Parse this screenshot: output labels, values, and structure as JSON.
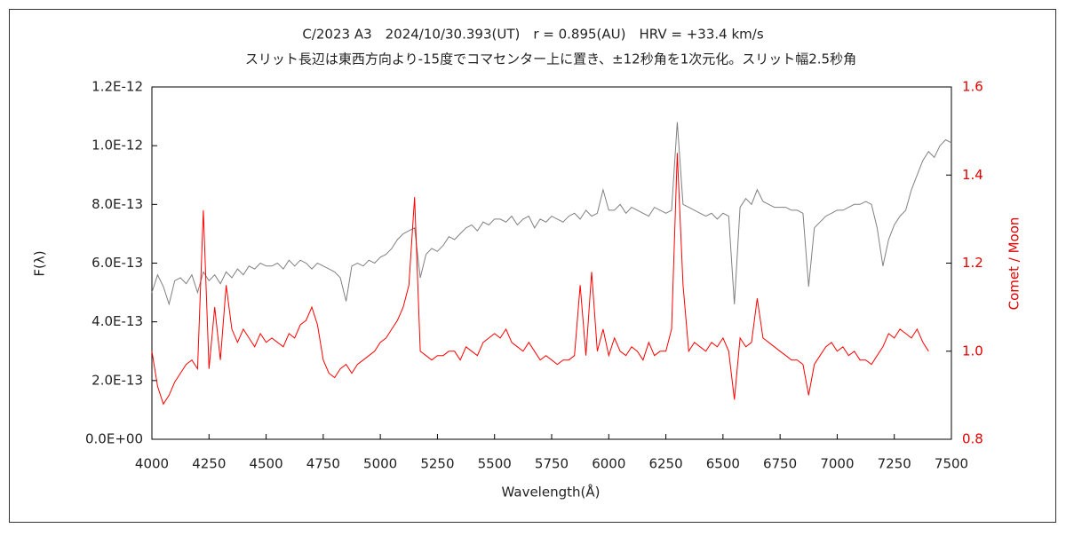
{
  "chart_data": {
    "type": "line",
    "title": "C/2023 A3　2024/10/30.393(UT)　r = 0.895(AU)　HRV = +33.4 km/s",
    "subtitle": "スリット長辺は東西方向より-15度でコマセンター上に置き、±12秒角を1次元化。スリット幅2.5秒角",
    "x_label": "Wavelength(Å)",
    "y_label": "F(λ)",
    "y2_label": "Comet / Moon",
    "xlim": [
      4000,
      7500
    ],
    "xticks": [
      4000,
      4250,
      4500,
      4750,
      5000,
      5250,
      5500,
      5750,
      6000,
      6250,
      6500,
      6750,
      7000,
      7250,
      7500
    ],
    "ylim": [
      0,
      1.2e-12
    ],
    "yticks": [
      {
        "value": 0,
        "label": "0.0E+00"
      },
      {
        "value": 2e-13,
        "label": "2.0E-13"
      },
      {
        "value": 4e-13,
        "label": "4.0E-13"
      },
      {
        "value": 6e-13,
        "label": "6.0E-13"
      },
      {
        "value": 8e-13,
        "label": "8.0E-13"
      },
      {
        "value": 1e-12,
        "label": "1.0E-12"
      },
      {
        "value": 1.2e-12,
        "label": "1.2E-12"
      }
    ],
    "y2lim": [
      0.8,
      1.6
    ],
    "y2ticks": [
      0.8,
      {
        "value": 1,
        "label": "1.0"
      },
      1.2,
      1.4,
      1.6
    ],
    "x": [
      4000,
      4025,
      4050,
      4075,
      4100,
      4125,
      4150,
      4175,
      4200,
      4225,
      4250,
      4275,
      4300,
      4325,
      4350,
      4375,
      4400,
      4425,
      4450,
      4475,
      4500,
      4525,
      4550,
      4575,
      4600,
      4625,
      4650,
      4675,
      4700,
      4725,
      4750,
      4775,
      4800,
      4825,
      4850,
      4875,
      4900,
      4925,
      4950,
      4975,
      5000,
      5025,
      5050,
      5075,
      5100,
      5125,
      5150,
      5175,
      5200,
      5225,
      5250,
      5275,
      5300,
      5325,
      5350,
      5375,
      5400,
      5425,
      5450,
      5475,
      5500,
      5525,
      5550,
      5575,
      5600,
      5625,
      5650,
      5675,
      5700,
      5725,
      5750,
      5775,
      5800,
      5825,
      5850,
      5875,
      5900,
      5925,
      5950,
      5975,
      6000,
      6025,
      6050,
      6075,
      6100,
      6125,
      6150,
      6175,
      6200,
      6225,
      6250,
      6275,
      6300,
      6325,
      6350,
      6375,
      6400,
      6425,
      6450,
      6475,
      6500,
      6525,
      6550,
      6575,
      6600,
      6625,
      6650,
      6675,
      6700,
      6725,
      6750,
      6775,
      6800,
      6825,
      6850,
      6875,
      6900,
      6925,
      6950,
      6975,
      7000,
      7025,
      7050,
      7075,
      7100,
      7125,
      7150,
      7175,
      7200,
      7225,
      7250,
      7275,
      7300,
      7325,
      7350,
      7375,
      7400,
      7425,
      7450,
      7475,
      7500
    ],
    "series": [
      {
        "color": "#808080",
        "values": [
          5e-13,
          5.6e-13,
          5.2e-13,
          4.6e-13,
          5.4e-13,
          5.5e-13,
          5.3e-13,
          5.6e-13,
          5e-13,
          5.7e-13,
          5.4e-13,
          5.6e-13,
          5.3e-13,
          5.7e-13,
          5.5e-13,
          5.8e-13,
          5.6e-13,
          5.9e-13,
          5.8e-13,
          6e-13,
          5.9e-13,
          5.9e-13,
          6e-13,
          5.8e-13,
          6.1e-13,
          5.9e-13,
          6.1e-13,
          6e-13,
          5.8e-13,
          6e-13,
          5.9e-13,
          5.8e-13,
          5.7e-13,
          5.5e-13,
          4.7e-13,
          5.9e-13,
          6e-13,
          5.9e-13,
          6.1e-13,
          6e-13,
          6.2e-13,
          6.3e-13,
          6.5e-13,
          6.8e-13,
          7e-13,
          7.1e-13,
          7.2e-13,
          5.5e-13,
          6.3e-13,
          6.5e-13,
          6.4e-13,
          6.6e-13,
          6.9e-13,
          6.8e-13,
          7e-13,
          7.2e-13,
          7.3e-13,
          7.1e-13,
          7.4e-13,
          7.3e-13,
          7.5e-13,
          7.5e-13,
          7.4e-13,
          7.6e-13,
          7.3e-13,
          7.5e-13,
          7.6e-13,
          7.2e-13,
          7.5e-13,
          7.4e-13,
          7.6e-13,
          7.5e-13,
          7.4e-13,
          7.6e-13,
          7.7e-13,
          7.5e-13,
          7.8e-13,
          7.6e-13,
          7.7e-13,
          8.5e-13,
          7.8e-13,
          7.8e-13,
          8e-13,
          7.7e-13,
          7.9e-13,
          7.8e-13,
          7.7e-13,
          7.6e-13,
          7.9e-13,
          7.8e-13,
          7.7e-13,
          7.8e-13,
          1.08e-12,
          8e-13,
          7.9e-13,
          7.8e-13,
          7.7e-13,
          7.6e-13,
          7.7e-13,
          7.5e-13,
          7.7e-13,
          7.6e-13,
          4.6e-13,
          7.9e-13,
          8.2e-13,
          8e-13,
          8.5e-13,
          8.1e-13,
          8e-13,
          7.9e-13,
          7.9e-13,
          7.9e-13,
          7.8e-13,
          7.8e-13,
          7.7e-13,
          5.2e-13,
          7.2e-13,
          7.4e-13,
          7.6e-13,
          7.7e-13,
          7.8e-13,
          7.8e-13,
          7.9e-13,
          8e-13,
          8e-13,
          8.1e-13,
          8e-13,
          7.2e-13,
          5.9e-13,
          6.8e-13,
          7.3e-13,
          7.6e-13,
          7.8e-13,
          8.5e-13,
          9e-13,
          9.5e-13,
          9.8e-13,
          9.6e-13,
          1e-12,
          1.02e-12,
          1.01e-12
        ]
      },
      {
        "color": "#ff0000",
        "axis": "y2",
        "values": [
          1.0,
          0.92,
          0.88,
          0.9,
          0.93,
          0.95,
          0.97,
          0.98,
          0.96,
          1.32,
          0.96,
          1.1,
          0.98,
          1.15,
          1.05,
          1.02,
          1.05,
          1.03,
          1.01,
          1.04,
          1.02,
          1.03,
          1.02,
          1.01,
          1.04,
          1.03,
          1.06,
          1.07,
          1.1,
          1.06,
          0.98,
          0.95,
          0.94,
          0.96,
          0.97,
          0.95,
          0.97,
          0.98,
          0.99,
          1.0,
          1.02,
          1.03,
          1.05,
          1.07,
          1.1,
          1.15,
          1.35,
          1.0,
          0.99,
          0.98,
          0.99,
          0.99,
          1.0,
          1.0,
          0.98,
          1.01,
          1.0,
          0.99,
          1.02,
          1.03,
          1.04,
          1.03,
          1.05,
          1.02,
          1.01,
          1.0,
          1.02,
          1.0,
          0.98,
          0.99,
          0.98,
          0.97,
          0.98,
          0.98,
          0.99,
          1.15,
          0.99,
          1.18,
          1.0,
          1.05,
          0.99,
          1.03,
          1.0,
          0.99,
          1.01,
          1.0,
          0.98,
          1.02,
          0.99,
          1.0,
          1.0,
          1.05,
          1.45,
          1.15,
          1.0,
          1.02,
          1.01,
          1.0,
          1.02,
          1.01,
          1.03,
          1.0,
          0.89,
          1.03,
          1.01,
          1.02,
          1.12,
          1.03,
          1.02,
          1.01,
          1.0,
          0.99,
          0.98,
          0.98,
          0.97,
          0.9,
          0.97,
          0.99,
          1.01,
          1.02,
          1.0,
          1.01,
          0.99,
          1.0,
          0.98,
          0.98,
          0.97,
          0.99,
          1.01,
          1.04,
          1.03,
          1.05,
          1.04,
          1.03,
          1.05,
          1.02,
          1.0,
          null,
          null,
          null,
          null
        ]
      }
    ]
  }
}
